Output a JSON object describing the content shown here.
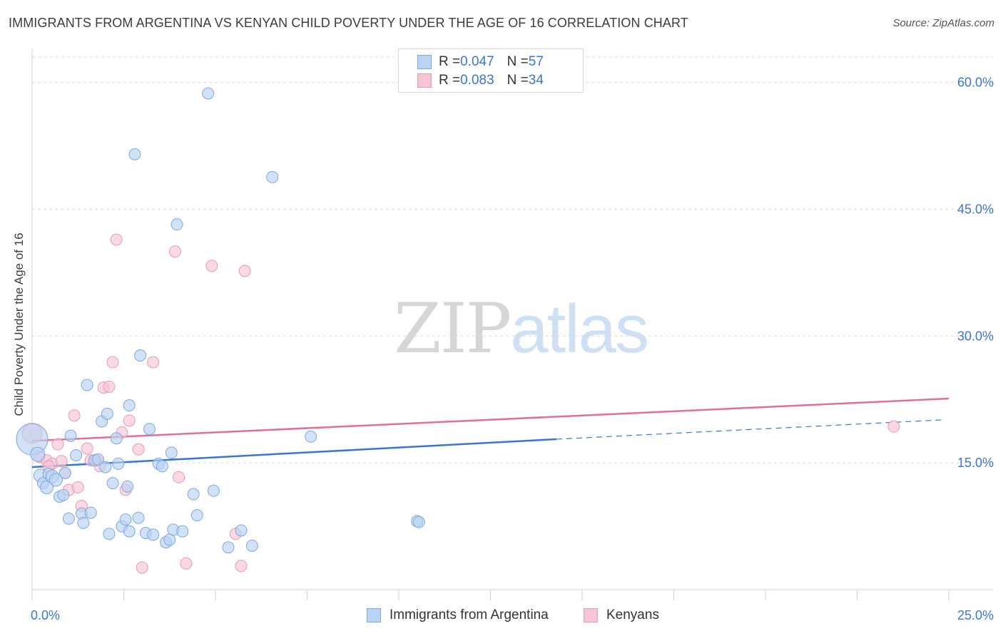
{
  "title": "IMMIGRANTS FROM ARGENTINA VS KENYAN CHILD POVERTY UNDER THE AGE OF 16 CORRELATION CHART",
  "source": "Source: ZipAtlas.com",
  "watermark": {
    "zip": "ZIP",
    "atlas": "atlas"
  },
  "legend_top": {
    "rows": [
      {
        "r_label": "R = ",
        "r_value": "0.047",
        "n_label": "N = ",
        "n_value": "57"
      },
      {
        "r_label": "R = ",
        "r_value": "0.083",
        "n_label": "N = ",
        "n_value": "34"
      }
    ]
  },
  "colors": {
    "blue": "#3a76d1",
    "blue_fill": "#b8d3f3",
    "pink": "#e0709a",
    "pink_fill": "#f6c4d4",
    "grid": "#dcdcdc"
  },
  "chart_data": {
    "type": "scatter",
    "title": "IMMIGRANTS FROM ARGENTINA VS KENYAN CHILD POVERTY UNDER THE AGE OF 16 CORRELATION CHART",
    "xlabel": "",
    "ylabel": "Child Poverty Under the Age of 16",
    "xlim": [
      0,
      25
    ],
    "ylim": [
      0,
      63
    ],
    "x_tick_labels": [
      "0.0%",
      "25.0%"
    ],
    "y_ticks": [
      15,
      30,
      45,
      60
    ],
    "y_tick_labels": [
      "15.0%",
      "30.0%",
      "45.0%",
      "60.0%"
    ],
    "grid": true,
    "legend_position": "bottom",
    "series": [
      {
        "name": "Immigrants from Argentina",
        "r": 0.047,
        "n": 57,
        "trend": {
          "x0": 0,
          "y0": 14.5,
          "x1": 14.3,
          "y1": 17.8,
          "dashed_to_x": 24.9,
          "dashed_to_y": 20.1
        },
        "points": [
          [
            0.0,
            17.8,
            22
          ],
          [
            0.15,
            16.0,
            10
          ],
          [
            0.22,
            13.5,
            9
          ],
          [
            0.3,
            12.6,
            8
          ],
          [
            0.4,
            12.1,
            9
          ],
          [
            0.45,
            13.7,
            8
          ],
          [
            0.55,
            13.4,
            9
          ],
          [
            0.65,
            13.0,
            9
          ],
          [
            0.75,
            11.0,
            8
          ],
          [
            0.85,
            11.2,
            8
          ],
          [
            0.9,
            13.8,
            8
          ],
          [
            1.0,
            8.4,
            8
          ],
          [
            1.05,
            18.2,
            8
          ],
          [
            1.2,
            15.9,
            8
          ],
          [
            1.35,
            9.0,
            8
          ],
          [
            1.4,
            7.9,
            8
          ],
          [
            1.5,
            24.2,
            8
          ],
          [
            1.6,
            9.1,
            8
          ],
          [
            1.7,
            15.3,
            8
          ],
          [
            1.8,
            15.4,
            8
          ],
          [
            1.9,
            19.9,
            8
          ],
          [
            2.0,
            14.5,
            8
          ],
          [
            2.05,
            20.8,
            8
          ],
          [
            2.1,
            6.6,
            8
          ],
          [
            2.2,
            12.6,
            8
          ],
          [
            2.3,
            17.9,
            8
          ],
          [
            2.35,
            14.9,
            8
          ],
          [
            2.45,
            7.5,
            8
          ],
          [
            2.55,
            8.3,
            8
          ],
          [
            2.6,
            12.2,
            8
          ],
          [
            2.65,
            6.9,
            8
          ],
          [
            2.65,
            21.8,
            8
          ],
          [
            2.8,
            51.5,
            8
          ],
          [
            2.9,
            8.5,
            8
          ],
          [
            2.95,
            27.7,
            8
          ],
          [
            3.1,
            6.7,
            8
          ],
          [
            3.2,
            19.0,
            8
          ],
          [
            3.3,
            6.5,
            8
          ],
          [
            3.45,
            14.9,
            8
          ],
          [
            3.55,
            14.6,
            8
          ],
          [
            3.65,
            5.6,
            8
          ],
          [
            3.75,
            5.9,
            8
          ],
          [
            3.8,
            16.2,
            8
          ],
          [
            3.85,
            7.1,
            8
          ],
          [
            3.95,
            43.2,
            8
          ],
          [
            4.1,
            6.9,
            8
          ],
          [
            4.4,
            11.3,
            8
          ],
          [
            4.5,
            8.8,
            8
          ],
          [
            4.8,
            58.7,
            8
          ],
          [
            4.95,
            11.7,
            8
          ],
          [
            5.35,
            5.0,
            8
          ],
          [
            5.7,
            7.0,
            8
          ],
          [
            6.0,
            5.2,
            8
          ],
          [
            6.55,
            48.8,
            8
          ],
          [
            7.6,
            18.1,
            8
          ],
          [
            10.5,
            8.1,
            8
          ],
          [
            10.55,
            8.0,
            8
          ]
        ]
      },
      {
        "name": "Kenyans",
        "r": 0.083,
        "n": 34,
        "trend": {
          "x0": 0,
          "y0": 17.6,
          "x1": 25,
          "y1": 22.6
        },
        "points": [
          [
            0.0,
            18.5,
            14
          ],
          [
            0.2,
            15.7,
            8
          ],
          [
            0.4,
            15.3,
            8
          ],
          [
            0.55,
            14.9,
            8
          ],
          [
            0.7,
            17.2,
            8
          ],
          [
            0.8,
            15.2,
            8
          ],
          [
            0.9,
            13.8,
            8
          ],
          [
            1.0,
            11.8,
            8
          ],
          [
            1.15,
            20.6,
            8
          ],
          [
            1.25,
            12.1,
            8
          ],
          [
            1.35,
            9.9,
            8
          ],
          [
            1.5,
            16.7,
            8
          ],
          [
            1.6,
            15.3,
            8
          ],
          [
            1.75,
            15.3,
            8
          ],
          [
            1.85,
            14.6,
            8
          ],
          [
            1.95,
            23.9,
            8
          ],
          [
            2.1,
            24.0,
            8
          ],
          [
            2.2,
            26.9,
            8
          ],
          [
            2.3,
            41.4,
            8
          ],
          [
            2.45,
            18.6,
            8
          ],
          [
            2.55,
            11.8,
            8
          ],
          [
            2.65,
            20.0,
            8
          ],
          [
            2.9,
            16.6,
            8
          ],
          [
            3.0,
            2.6,
            8
          ],
          [
            3.3,
            26.9,
            8
          ],
          [
            3.9,
            40.0,
            8
          ],
          [
            4.0,
            13.3,
            8
          ],
          [
            4.2,
            3.1,
            8
          ],
          [
            4.9,
            38.3,
            8
          ],
          [
            5.55,
            6.6,
            8
          ],
          [
            5.7,
            2.8,
            8
          ],
          [
            5.8,
            37.7,
            8
          ],
          [
            23.5,
            19.3,
            8
          ],
          [
            0.45,
            14.6,
            8
          ]
        ]
      }
    ]
  },
  "legend_bottom": {
    "items": [
      "Immigrants from Argentina",
      "Kenyans"
    ]
  }
}
